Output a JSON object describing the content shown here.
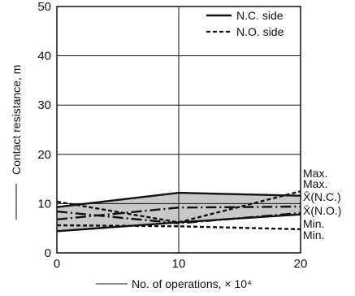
{
  "chart_data": {
    "type": "line",
    "xlabel": "No. of operations, × 10⁴",
    "ylabel": "Contact resistance, m",
    "x": [
      0,
      10,
      20
    ],
    "xticks": [
      "0",
      "10",
      "20"
    ],
    "yticks": [
      "0",
      "10",
      "20",
      "30",
      "40",
      "50"
    ],
    "xlim": [
      0,
      20
    ],
    "ylim": [
      0,
      50
    ],
    "grid": true,
    "legend_position": "top-right",
    "legend": [
      {
        "label": "N.C. side",
        "style": "solid"
      },
      {
        "label": "N.O. side",
        "style": "dashed"
      }
    ],
    "series": [
      {
        "group": "N.C. side",
        "name": "Max.",
        "style": "solid",
        "values": [
          9.3,
          12.2,
          11.6
        ]
      },
      {
        "group": "N.C. side",
        "name": "X̄(N.C.)",
        "style": "dash-dot",
        "values": [
          6.8,
          9.2,
          9.4
        ]
      },
      {
        "group": "N.C. side",
        "name": "Min.",
        "style": "solid",
        "values": [
          4.4,
          6.2,
          7.8
        ]
      },
      {
        "group": "N.O. side",
        "name": "Max.",
        "style": "dashed",
        "values": [
          10.4,
          6.2,
          12.5
        ]
      },
      {
        "group": "N.O. side",
        "name": "X̄(N.O.)",
        "style": "dash-dot",
        "values": [
          8.4,
          6.0,
          8.1
        ]
      },
      {
        "group": "N.O. side",
        "name": "Min.",
        "style": "dashed",
        "values": [
          5.6,
          5.4,
          4.8
        ]
      }
    ],
    "annotations": [
      "Max.",
      "Max.",
      "X̄(N.C.)",
      "X̄(N.O.)",
      "Min.",
      "Min."
    ],
    "band_color": "#c8c8c8",
    "line_color": "#111111"
  }
}
